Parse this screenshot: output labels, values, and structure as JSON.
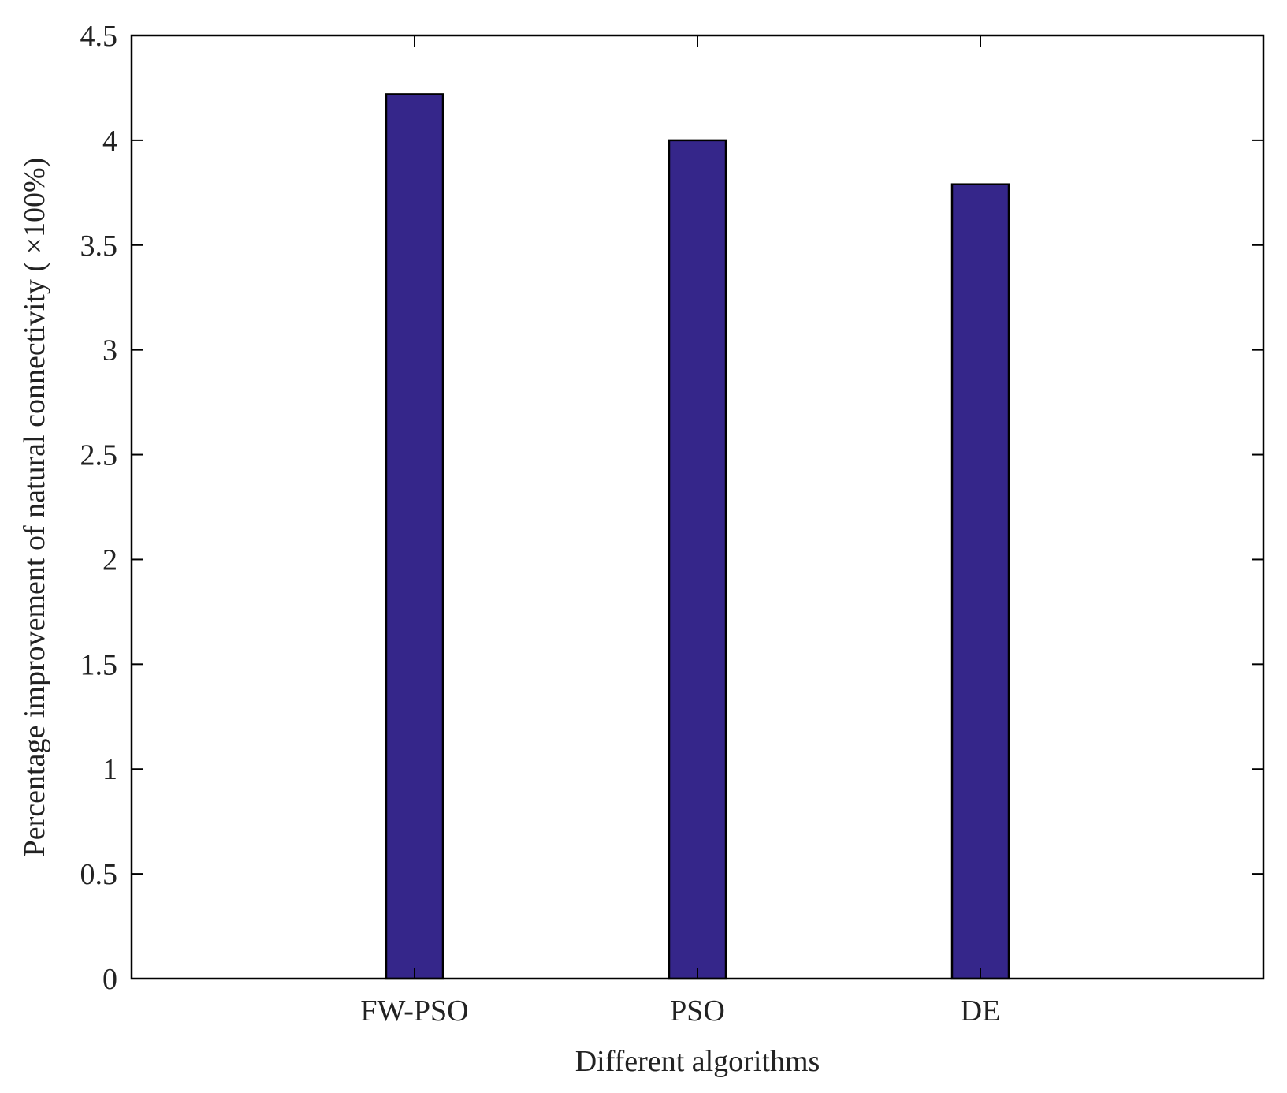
{
  "chart_data": {
    "type": "bar",
    "title": "",
    "xlabel": "Different algorithms",
    "ylabel": "Percentage improvement of natural connectivity ( ×100%)",
    "categories": [
      "FW-PSO",
      "PSO",
      "DE"
    ],
    "values": [
      4.22,
      4.0,
      3.79
    ],
    "ylim": [
      0,
      4.5
    ],
    "yticks": [
      "0",
      "0.5",
      "1",
      "1.5",
      "2",
      "2.5",
      "3",
      "3.5",
      "4",
      "4.5"
    ],
    "grid": false,
    "bar_color": "#35268a",
    "bar_edge_color": "#000000"
  }
}
